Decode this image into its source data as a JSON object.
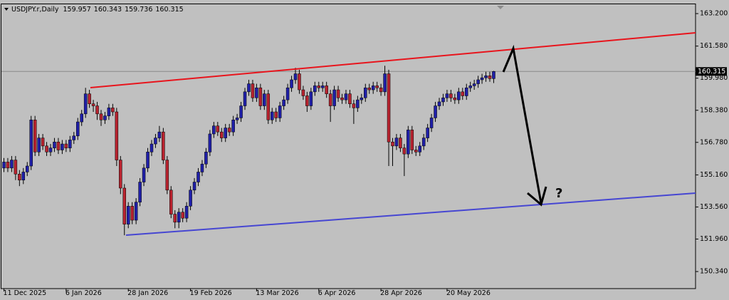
{
  "chart_data": {
    "type": "candlestick",
    "symbol": "USDJPY.r,Daily",
    "categories": [
      "11 Dec 2025",
      null,
      null,
      null,
      null,
      null,
      null,
      null,
      null,
      null,
      null,
      null,
      null,
      null,
      null,
      null,
      "6 Jan 2026",
      null,
      null,
      null,
      null,
      null,
      null,
      null,
      null,
      null,
      null,
      null,
      null,
      null,
      null,
      null,
      "28 Jan 2026",
      null,
      null,
      null,
      null,
      null,
      null,
      null,
      null,
      null,
      null,
      null,
      null,
      null,
      null,
      null,
      "19 Feb 2026",
      null,
      null,
      null,
      null,
      null,
      null,
      null,
      null,
      null,
      null,
      null,
      null,
      null,
      null,
      null,
      null,
      "13 Mar 2026",
      null,
      null,
      null,
      null,
      null,
      null,
      null,
      null,
      null,
      null,
      null,
      null,
      null,
      null,
      null,
      "6 Apr 2026",
      null,
      null,
      null,
      null,
      null,
      null,
      null,
      null,
      null,
      null,
      null,
      null,
      null,
      null,
      null,
      "28 Apr 2026",
      null,
      null,
      null,
      null,
      null,
      null,
      null,
      null,
      null,
      null,
      null,
      null,
      null,
      null,
      null,
      null,
      "20 May 2026",
      null,
      null,
      null,
      null,
      null,
      null,
      null,
      null,
      null,
      null,
      null,
      null
    ],
    "open": [
      155.5,
      155.8,
      155.5,
      155.9,
      155.2,
      154.9,
      155.3,
      155.6,
      157.9,
      156.3,
      157.0,
      156.6,
      156.3,
      156.5,
      156.8,
      156.4,
      156.7,
      156.5,
      156.9,
      157.1,
      157.8,
      158.2,
      159.2,
      158.7,
      158.6,
      158.2,
      157.9,
      158.1,
      158.5,
      158.3,
      155.9,
      154.5,
      152.7,
      153.6,
      152.9,
      153.8,
      154.8,
      155.5,
      156.3,
      156.7,
      157.0,
      157.3,
      155.9,
      154.4,
      153.2,
      152.8,
      153.3,
      153.0,
      153.6,
      154.4,
      154.8,
      155.3,
      155.7,
      156.3,
      157.2,
      157.6,
      157.3,
      157.0,
      157.5,
      157.3,
      157.9,
      158.0,
      158.6,
      159.3,
      159.7,
      159.0,
      159.5,
      158.6,
      159.2,
      157.9,
      158.3,
      158.0,
      158.6,
      158.9,
      159.5,
      159.9,
      160.2,
      159.4,
      159.1,
      158.6,
      159.3,
      159.6,
      159.5,
      159.6,
      159.2,
      158.6,
      159.4,
      159.0,
      158.9,
      159.2,
      158.7,
      158.5,
      158.9,
      159.0,
      159.5,
      159.4,
      159.6,
      159.5,
      159.3,
      160.2,
      156.8,
      156.6,
      157.0,
      156.5,
      156.2,
      157.4,
      156.4,
      156.3,
      156.6,
      157.0,
      157.5,
      158.0,
      158.6,
      158.8,
      159.0,
      159.2,
      159.0,
      158.9,
      159.3,
      159.1,
      159.5,
      159.6,
      159.7,
      159.9,
      160.0,
      160.1,
      159.957
    ],
    "high": [
      156.0,
      156.0,
      156.1,
      156.1,
      155.4,
      155.5,
      155.8,
      158.1,
      158.1,
      157.2,
      157.2,
      156.8,
      156.7,
      157.0,
      157.0,
      156.9,
      156.9,
      157.1,
      157.3,
      158.0,
      158.4,
      159.5,
      159.4,
      158.9,
      158.8,
      158.4,
      158.3,
      158.7,
      158.7,
      158.5,
      156.1,
      154.7,
      153.8,
      153.8,
      154.0,
      155.0,
      155.7,
      156.5,
      156.9,
      157.2,
      157.6,
      157.5,
      156.1,
      154.6,
      153.4,
      153.5,
      153.5,
      153.8,
      154.6,
      155.0,
      155.5,
      155.9,
      156.5,
      157.4,
      157.8,
      157.8,
      157.5,
      157.7,
      157.7,
      158.1,
      158.2,
      158.8,
      159.5,
      159.9,
      159.9,
      159.7,
      159.7,
      159.4,
      159.4,
      158.5,
      158.5,
      158.8,
      159.1,
      159.7,
      160.1,
      160.5,
      160.4,
      159.6,
      159.3,
      159.5,
      159.8,
      159.8,
      159.8,
      159.8,
      159.4,
      159.6,
      159.6,
      159.2,
      159.4,
      159.4,
      158.9,
      159.1,
      159.2,
      159.7,
      159.7,
      159.8,
      159.8,
      159.7,
      160.6,
      160.4,
      157.0,
      157.2,
      157.2,
      156.7,
      157.6,
      157.6,
      156.6,
      156.8,
      157.2,
      157.7,
      158.2,
      158.8,
      159.0,
      159.2,
      159.4,
      159.4,
      159.2,
      159.5,
      159.5,
      159.7,
      159.8,
      159.9,
      160.1,
      160.2,
      160.3,
      160.3,
      160.343
    ],
    "low": [
      155.3,
      155.3,
      155.3,
      154.9,
      154.6,
      154.7,
      155.1,
      155.4,
      156.1,
      156.1,
      156.4,
      156.1,
      156.1,
      156.3,
      156.2,
      156.2,
      156.3,
      156.3,
      156.7,
      156.9,
      157.6,
      158.0,
      158.5,
      158.3,
      157.9,
      157.6,
      157.7,
      157.9,
      158.1,
      155.6,
      154.2,
      152.15,
      152.5,
      152.7,
      152.7,
      153.6,
      154.6,
      155.3,
      156.1,
      156.5,
      156.8,
      155.7,
      154.2,
      153.0,
      152.5,
      152.5,
      152.8,
      152.8,
      153.4,
      154.2,
      154.6,
      155.1,
      155.5,
      156.1,
      157.0,
      157.1,
      156.8,
      156.8,
      157.1,
      157.1,
      157.7,
      157.8,
      158.4,
      159.1,
      158.8,
      158.8,
      158.4,
      158.4,
      157.7,
      157.7,
      157.8,
      157.8,
      158.4,
      158.7,
      159.3,
      159.7,
      159.2,
      158.9,
      158.3,
      158.4,
      159.1,
      159.3,
      159.3,
      159.0,
      157.8,
      158.4,
      158.8,
      158.7,
      158.7,
      158.5,
      157.7,
      158.3,
      158.7,
      158.8,
      159.2,
      159.2,
      159.3,
      159.1,
      159.1,
      155.6,
      155.6,
      156.4,
      156.3,
      155.1,
      156.0,
      156.2,
      156.1,
      156.1,
      156.4,
      156.8,
      157.3,
      157.8,
      158.4,
      158.6,
      158.8,
      158.8,
      158.7,
      158.7,
      158.9,
      158.9,
      159.3,
      159.4,
      159.5,
      159.7,
      159.8,
      159.8,
      159.736
    ],
    "close": [
      155.8,
      155.5,
      155.9,
      155.2,
      154.9,
      155.3,
      155.6,
      157.9,
      156.3,
      157.0,
      156.6,
      156.3,
      156.5,
      156.8,
      156.4,
      156.7,
      156.5,
      156.9,
      157.1,
      157.8,
      158.2,
      159.2,
      158.7,
      158.6,
      158.2,
      157.9,
      158.1,
      158.5,
      158.3,
      155.9,
      154.5,
      152.7,
      153.6,
      152.9,
      153.8,
      154.8,
      155.5,
      156.3,
      156.7,
      157.0,
      157.3,
      155.9,
      154.4,
      153.2,
      152.8,
      153.3,
      153.0,
      153.6,
      154.4,
      154.8,
      155.3,
      155.7,
      156.3,
      157.2,
      157.6,
      157.3,
      157.0,
      157.5,
      157.3,
      157.9,
      158.0,
      158.6,
      159.3,
      159.7,
      159.0,
      159.5,
      158.6,
      159.2,
      157.9,
      158.3,
      158.0,
      158.6,
      158.9,
      159.5,
      159.9,
      160.2,
      159.4,
      159.1,
      158.6,
      159.3,
      159.6,
      159.5,
      159.6,
      159.2,
      158.6,
      159.4,
      159.0,
      158.9,
      159.2,
      158.7,
      158.5,
      158.9,
      159.0,
      159.5,
      159.4,
      159.6,
      159.5,
      159.3,
      160.2,
      156.8,
      156.6,
      157.0,
      156.5,
      156.2,
      157.4,
      156.4,
      156.3,
      156.6,
      157.0,
      157.5,
      158.0,
      158.6,
      158.8,
      159.0,
      159.2,
      159.0,
      158.9,
      159.3,
      159.1,
      159.5,
      159.6,
      159.7,
      159.9,
      160.0,
      160.1,
      159.957,
      160.315
    ],
    "up_color": "#1f1fa8",
    "down_color": "#b8232f",
    "ylim": [
      149.49,
      163.7
    ],
    "yticks": [
      {
        "value": 163.2,
        "label": "163.200"
      },
      {
        "value": 161.58,
        "label": "161.580"
      },
      {
        "value": 159.98,
        "label": "159.980"
      },
      {
        "value": 158.38,
        "label": "158.380"
      },
      {
        "value": 156.78,
        "label": "156.780"
      },
      {
        "value": 155.16,
        "label": "155.160"
      },
      {
        "value": 153.56,
        "label": "153.560"
      },
      {
        "value": 151.96,
        "label": "151.960"
      },
      {
        "value": 150.34,
        "label": "150.340"
      }
    ],
    "annotation": "?"
  }
}
